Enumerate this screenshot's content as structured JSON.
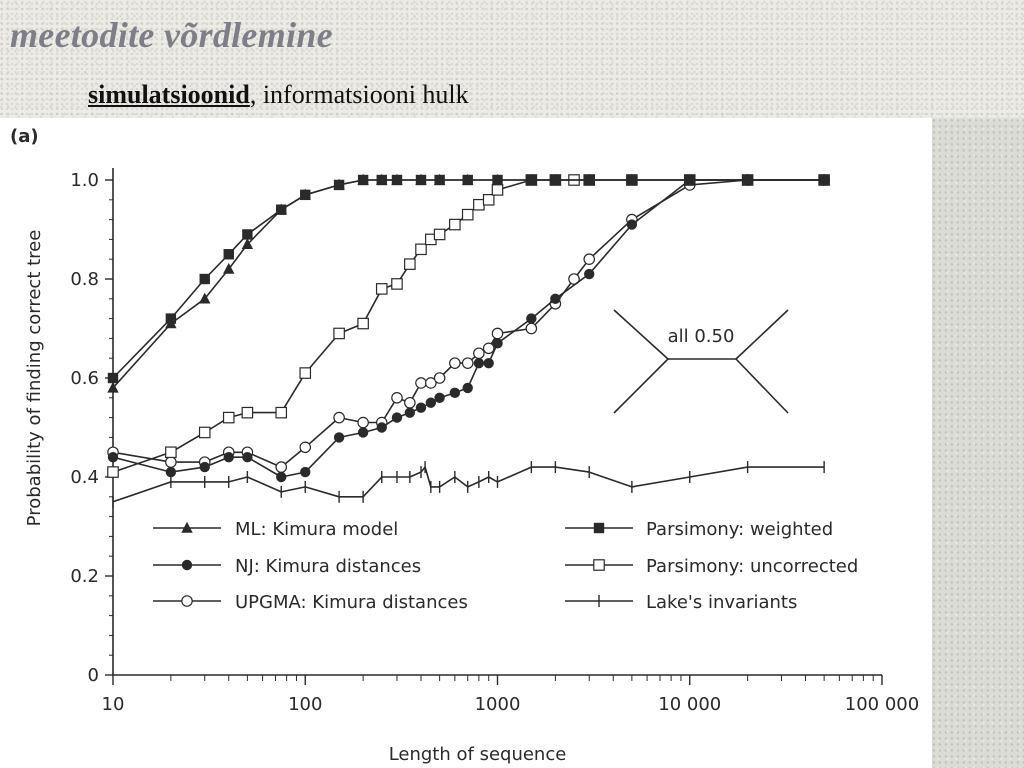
{
  "slide": {
    "title": "meetodite võrdlemine",
    "subtitle_bold": "simulatsioonid",
    "subtitle_rest": ", informatsiooni hulk"
  },
  "chart_data": {
    "type": "line",
    "panel_label": "(a)",
    "xlabel": "Length of sequence",
    "ylabel": "Probability of finding correct tree",
    "xscale": "log",
    "xlim": [
      10,
      100000
    ],
    "ylim": [
      0,
      1.0
    ],
    "xticks": [
      10,
      100,
      1000,
      10000,
      100000
    ],
    "xtick_labels": [
      "10",
      "100",
      "1000",
      "10 000",
      "100 000"
    ],
    "yticks": [
      0,
      0.2,
      0.4,
      0.6,
      0.8,
      1.0
    ],
    "ytick_labels": [
      "0",
      "0.2",
      "0.4",
      "0.6",
      "0.8",
      "1.0"
    ],
    "grid": false,
    "legend_position": "inside-lower",
    "inset": {
      "label": "all 0.50",
      "type": "unrooted-four-taxon-tree"
    },
    "series": [
      {
        "name": "ML: Kimura model",
        "marker": "triangle-filled",
        "x": [
          10,
          20,
          30,
          40,
          50,
          75,
          100,
          150,
          200,
          250,
          300,
          400,
          500,
          700,
          1000,
          1500,
          2000,
          3000,
          5000,
          10000,
          20000,
          50000
        ],
        "y": [
          0.58,
          0.71,
          0.76,
          0.82,
          0.87,
          0.94,
          0.97,
          0.99,
          1.0,
          1.0,
          1.0,
          1.0,
          1.0,
          1.0,
          1.0,
          1.0,
          1.0,
          1.0,
          1.0,
          1.0,
          1.0,
          1.0
        ]
      },
      {
        "name": "Parsimony: weighted",
        "marker": "square-filled",
        "x": [
          10,
          20,
          30,
          40,
          50,
          75,
          100,
          150,
          200,
          250,
          300,
          400,
          500,
          700,
          1000,
          1500,
          2000,
          3000,
          5000,
          10000,
          20000,
          50000
        ],
        "y": [
          0.6,
          0.72,
          0.8,
          0.85,
          0.89,
          0.94,
          0.97,
          0.99,
          1.0,
          1.0,
          1.0,
          1.0,
          1.0,
          1.0,
          1.0,
          1.0,
          1.0,
          1.0,
          1.0,
          1.0,
          1.0,
          1.0
        ]
      },
      {
        "name": "NJ: Kimura distances",
        "marker": "circle-filled",
        "x": [
          10,
          20,
          30,
          40,
          50,
          75,
          100,
          150,
          200,
          250,
          300,
          350,
          400,
          450,
          500,
          600,
          700,
          800,
          900,
          1000,
          1500,
          2000,
          3000,
          5000,
          10000,
          20000,
          50000
        ],
        "y": [
          0.44,
          0.41,
          0.42,
          0.44,
          0.44,
          0.4,
          0.41,
          0.48,
          0.49,
          0.5,
          0.52,
          0.53,
          0.54,
          0.55,
          0.56,
          0.57,
          0.58,
          0.63,
          0.63,
          0.67,
          0.72,
          0.76,
          0.81,
          0.91,
          1.0,
          1.0,
          1.0
        ]
      },
      {
        "name": "UPGMA: Kimura distances",
        "marker": "circle-open",
        "x": [
          10,
          20,
          30,
          40,
          50,
          75,
          100,
          150,
          200,
          250,
          300,
          350,
          400,
          450,
          500,
          600,
          700,
          800,
          900,
          1000,
          1500,
          2000,
          2500,
          3000,
          5000,
          10000,
          20000,
          50000
        ],
        "y": [
          0.45,
          0.43,
          0.43,
          0.45,
          0.45,
          0.42,
          0.46,
          0.52,
          0.51,
          0.51,
          0.56,
          0.55,
          0.59,
          0.59,
          0.6,
          0.63,
          0.63,
          0.65,
          0.66,
          0.69,
          0.7,
          0.75,
          0.8,
          0.84,
          0.92,
          0.99,
          1.0,
          1.0
        ]
      },
      {
        "name": "Parsimony: uncorrected",
        "marker": "square-open",
        "x": [
          10,
          20,
          30,
          40,
          50,
          75,
          100,
          150,
          200,
          250,
          300,
          350,
          400,
          450,
          500,
          600,
          700,
          800,
          900,
          1000,
          1500,
          2000,
          2500,
          3000,
          5000,
          10000,
          20000,
          50000
        ],
        "y": [
          0.41,
          0.45,
          0.49,
          0.52,
          0.53,
          0.53,
          0.61,
          0.69,
          0.71,
          0.78,
          0.79,
          0.83,
          0.86,
          0.88,
          0.89,
          0.91,
          0.93,
          0.95,
          0.96,
          0.98,
          1.0,
          1.0,
          1.0,
          1.0,
          1.0,
          1.0,
          1.0,
          1.0
        ]
      },
      {
        "name": "Lake's invariants",
        "marker": "plus",
        "x": [
          10,
          20,
          30,
          40,
          50,
          75,
          100,
          150,
          200,
          250,
          300,
          350,
          400,
          420,
          450,
          500,
          600,
          700,
          800,
          900,
          1000,
          1500,
          2000,
          3000,
          5000,
          10000,
          20000,
          50000
        ],
        "y": [
          0.35,
          0.39,
          0.39,
          0.39,
          0.4,
          0.37,
          0.38,
          0.36,
          0.36,
          0.4,
          0.4,
          0.4,
          0.41,
          0.42,
          0.38,
          0.38,
          0.4,
          0.38,
          0.39,
          0.4,
          0.39,
          0.42,
          0.42,
          0.41,
          0.38,
          0.4,
          0.42,
          0.42
        ]
      }
    ],
    "legend_order": [
      "ML: Kimura model",
      "Parsimony: weighted",
      "NJ: Kimura distances",
      "Parsimony: uncorrected",
      "UPGMA: Kimura distances",
      "Lake's invariants"
    ]
  }
}
